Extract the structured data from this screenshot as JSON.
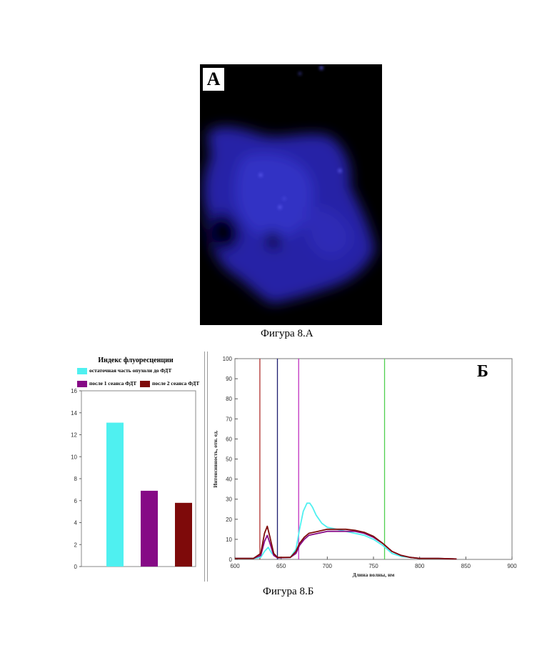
{
  "figure_a": {
    "label": "А",
    "caption": "Фигура 8.А"
  },
  "figure_b": {
    "label": "Б",
    "caption": "Фигура 8.Б"
  },
  "colors": {
    "cyan": "#4ff0f0",
    "purple": "#860a86",
    "darkred": "#7e0a0a",
    "line_red": "#b0302e",
    "line_navy": "#1e1e70",
    "line_magenta": "#c030c0",
    "line_green": "#50d050",
    "fluor_blue": "#2a28b8"
  },
  "chart_data": [
    {
      "type": "bar",
      "title": "Индекс флуоресценции",
      "legend": [
        "остаточная часть опухоли до ФДТ",
        "после 1 сеанса ФДТ",
        "после 2 сеанса ФДТ"
      ],
      "series": [
        {
          "name": "остаточная часть опухоли до ФДТ",
          "values": [
            13.1
          ]
        },
        {
          "name": "после 1 сеанса ФДТ",
          "values": [
            6.9
          ]
        },
        {
          "name": "после 2 сеанса ФДТ",
          "values": [
            5.8
          ]
        }
      ],
      "ylim": [
        0,
        16
      ],
      "yticks": [
        "0",
        "2",
        "4",
        "6",
        "8",
        "10",
        "12",
        "14",
        "16"
      ],
      "ytick_values": [
        0,
        2,
        4,
        6,
        8,
        10,
        12,
        14,
        16
      ]
    },
    {
      "type": "line",
      "xlabel": "Длина волны, нм",
      "ylabel": "Интенсивность, отн. ед.",
      "xlim": [
        600,
        900
      ],
      "ylim": [
        0,
        100
      ],
      "xticks": [
        "600",
        "650",
        "700",
        "750",
        "800",
        "850",
        "900"
      ],
      "xtick_values": [
        600,
        650,
        700,
        750,
        800,
        850,
        900
      ],
      "yticks": [
        "0",
        "10",
        "20",
        "30",
        "40",
        "50",
        "60",
        "70",
        "80",
        "90",
        "100"
      ],
      "ytick_values": [
        0,
        10,
        20,
        30,
        40,
        50,
        60,
        70,
        80,
        90,
        100
      ],
      "vertical_lines": [
        {
          "x": 627,
          "color": "#b0302e"
        },
        {
          "x": 646,
          "color": "#1e1e70"
        },
        {
          "x": 669,
          "color": "#c030c0"
        },
        {
          "x": 762,
          "color": "#50d050"
        }
      ],
      "series": [
        {
          "color": "#4ff0f0",
          "x": [
            600,
            620,
            628,
            632,
            636,
            640,
            646,
            660,
            666,
            670,
            674,
            678,
            681,
            684,
            688,
            694,
            700,
            710,
            720,
            730,
            740,
            750,
            760,
            770,
            780,
            790,
            800,
            820,
            840
          ],
          "y": [
            0.5,
            0.5,
            1,
            4,
            6,
            3,
            0.8,
            1,
            5,
            15,
            24,
            28,
            28,
            26,
            22,
            18,
            16,
            15,
            14,
            13,
            12,
            10,
            7,
            3,
            1.5,
            1,
            0.5,
            0.5,
            0.2
          ]
        },
        {
          "color": "#860a86",
          "x": [
            600,
            620,
            628,
            632,
            635,
            638,
            642,
            646,
            660,
            666,
            670,
            675,
            680,
            690,
            700,
            710,
            720,
            730,
            740,
            750,
            760,
            770,
            780,
            790,
            800,
            820,
            840
          ],
          "y": [
            0.5,
            0.5,
            2,
            9,
            12,
            8,
            2,
            0.8,
            1,
            3,
            7,
            10,
            12,
            13,
            14,
            14,
            14,
            14,
            13,
            11,
            8,
            4,
            2,
            1,
            0.5,
            0.5,
            0.2
          ]
        },
        {
          "color": "#7e0a0a",
          "x": [
            600,
            620,
            628,
            632,
            635,
            638,
            642,
            646,
            660,
            666,
            670,
            675,
            680,
            690,
            700,
            710,
            720,
            730,
            740,
            750,
            760,
            770,
            780,
            790,
            800,
            820,
            840
          ],
          "y": [
            0.5,
            0.5,
            3,
            13,
            16.5,
            11,
            3,
            1,
            1,
            4,
            8,
            11,
            13,
            14,
            15,
            15,
            15,
            14.5,
            13.5,
            11.5,
            8,
            4,
            2,
            1,
            0.5,
            0.5,
            0.2
          ]
        }
      ]
    }
  ]
}
